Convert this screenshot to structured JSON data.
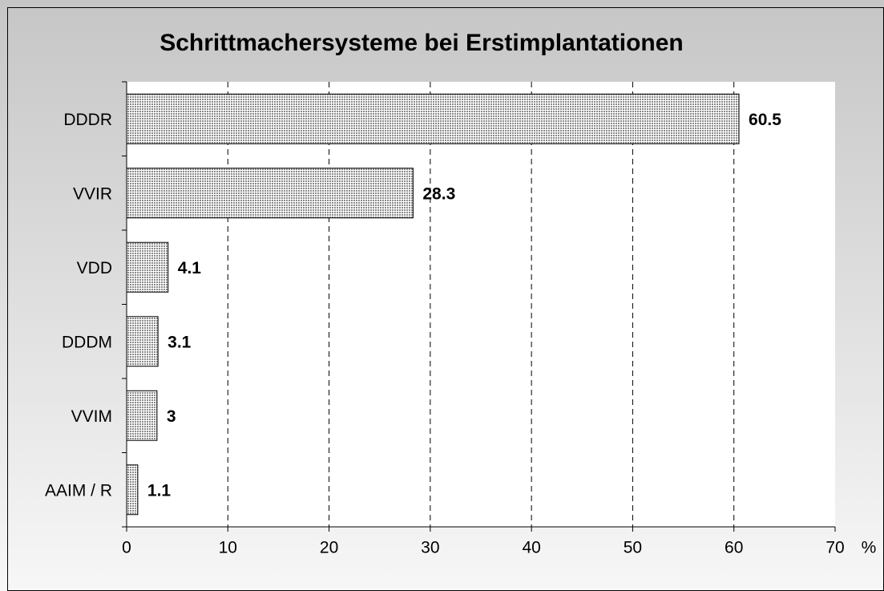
{
  "chart_data": {
    "type": "bar",
    "orientation": "horizontal",
    "title": "Schrittmachersysteme bei Erstimplantationen",
    "categories": [
      "DDDR",
      "VVIR",
      "VDD",
      "DDDM",
      "VVIM",
      "AAIM / R"
    ],
    "values": [
      60.5,
      28.3,
      4.1,
      3.1,
      3,
      1.1
    ],
    "color": "#b8b8b8",
    "xlabel": "%",
    "xlim": [
      0,
      70
    ],
    "xticks": [
      0,
      10,
      20,
      30,
      40,
      50,
      60,
      70
    ],
    "grid": true
  }
}
